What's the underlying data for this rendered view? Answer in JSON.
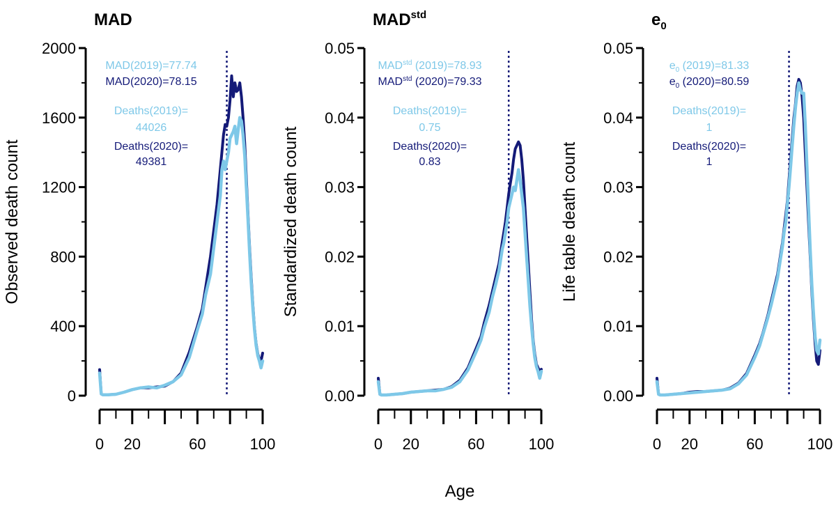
{
  "colors": {
    "light": "#7ec8e8",
    "dark": "#141a78",
    "axis": "#000000"
  },
  "xlabel": "Age",
  "chart_data": [
    {
      "type": "line",
      "title": "MAD",
      "title_sup": "",
      "title_sub": "",
      "ylabel": "Observed death count",
      "xlim": [
        0,
        100
      ],
      "ylim": [
        0,
        2000
      ],
      "yticks": [
        "0",
        "400",
        "800",
        "1200",
        "1600",
        "2000"
      ],
      "xticks": [
        "0",
        "20",
        "60",
        "100"
      ],
      "vline": 78,
      "annotations": [
        {
          "series": "2019",
          "base": "MAD",
          "sup": "",
          "sub": "",
          "rest": "(2019)=77.74"
        },
        {
          "series": "2020",
          "base": "MAD",
          "sup": "",
          "sub": "",
          "rest": "(2020)=78.15"
        },
        {
          "series": "2019",
          "base": "Deaths(2019)=",
          "sup": "",
          "sub": "",
          "rest": ""
        },
        {
          "series": "2019",
          "base": "44026",
          "sup": "",
          "sub": "",
          "rest": ""
        },
        {
          "series": "2020",
          "base": "Deaths(2020)=",
          "sup": "",
          "sub": "",
          "rest": ""
        },
        {
          "series": "2020",
          "base": "49381",
          "sup": "",
          "sub": "",
          "rest": ""
        }
      ],
      "series": [
        {
          "year": "2020",
          "x": [
            0,
            1,
            2,
            5,
            10,
            15,
            20,
            25,
            30,
            35,
            40,
            45,
            50,
            55,
            60,
            63,
            65,
            68,
            70,
            72,
            74,
            75,
            76,
            77,
            78,
            79,
            80,
            81,
            82,
            83,
            84,
            85,
            86,
            87,
            88,
            89,
            90,
            91,
            92,
            93,
            94,
            95,
            96,
            97,
            98,
            99,
            100
          ],
          "values": [
            150,
            10,
            5,
            5,
            8,
            20,
            35,
            45,
            45,
            50,
            55,
            80,
            130,
            250,
            400,
            500,
            620,
            800,
            950,
            1100,
            1300,
            1400,
            1500,
            1560,
            1550,
            1600,
            1700,
            1840,
            1720,
            1800,
            1750,
            1760,
            1800,
            1720,
            1600,
            1450,
            1250,
            1050,
            850,
            680,
            520,
            390,
            300,
            240,
            210,
            200,
            245
          ]
        },
        {
          "year": "2019",
          "x": [
            0,
            1,
            2,
            5,
            10,
            15,
            20,
            25,
            30,
            35,
            40,
            45,
            50,
            55,
            60,
            63,
            65,
            68,
            70,
            72,
            74,
            75,
            76,
            77,
            78,
            79,
            80,
            81,
            82,
            83,
            84,
            85,
            86,
            87,
            88,
            89,
            90,
            91,
            92,
            93,
            94,
            95,
            96,
            97,
            98,
            99,
            100
          ],
          "values": [
            130,
            10,
            5,
            5,
            8,
            20,
            35,
            45,
            50,
            45,
            60,
            80,
            120,
            220,
            380,
            470,
            580,
            700,
            850,
            1000,
            1150,
            1300,
            1350,
            1300,
            1350,
            1400,
            1480,
            1500,
            1520,
            1550,
            1450,
            1530,
            1600,
            1580,
            1500,
            1380,
            1200,
            1020,
            820,
            650,
            500,
            380,
            290,
            230,
            200,
            160,
            200
          ]
        }
      ]
    },
    {
      "type": "line",
      "title": "MAD",
      "title_sup": "std",
      "title_sub": "",
      "ylabel": "Standardized death count",
      "xlim": [
        0,
        100
      ],
      "ylim": [
        0,
        0.05
      ],
      "yticks": [
        "0.00",
        "0.01",
        "0.02",
        "0.03",
        "0.04",
        "0.05"
      ],
      "xticks": [
        "0",
        "20",
        "60",
        "100"
      ],
      "vline": 80,
      "annotations": [
        {
          "series": "2019",
          "base": "MAD",
          "sup": "std",
          "sub": "",
          "rest": " (2019)=78.93"
        },
        {
          "series": "2020",
          "base": "MAD",
          "sup": "std",
          "sub": "",
          "rest": " (2020)=79.33"
        },
        {
          "series": "2019",
          "base": "Deaths(2019)=",
          "sup": "",
          "sub": "",
          "rest": ""
        },
        {
          "series": "2019",
          "base": "0.75",
          "sup": "",
          "sub": "",
          "rest": ""
        },
        {
          "series": "2020",
          "base": "Deaths(2020)=",
          "sup": "",
          "sub": "",
          "rest": ""
        },
        {
          "series": "2020",
          "base": "0.83",
          "sup": "",
          "sub": "",
          "rest": ""
        }
      ],
      "series": [
        {
          "year": "2020",
          "x": [
            0,
            1,
            2,
            5,
            10,
            15,
            20,
            25,
            30,
            35,
            40,
            45,
            50,
            55,
            60,
            63,
            65,
            68,
            70,
            72,
            74,
            75,
            76,
            77,
            78,
            79,
            80,
            81,
            82,
            83,
            84,
            85,
            86,
            87,
            88,
            89,
            90,
            91,
            92,
            93,
            94,
            95,
            96,
            97,
            98,
            99,
            100
          ],
          "values": [
            0.0025,
            0.0002,
            0.0001,
            0.0001,
            0.0002,
            0.0003,
            0.0005,
            0.0006,
            0.0007,
            0.0008,
            0.0009,
            0.0013,
            0.0022,
            0.004,
            0.0068,
            0.0085,
            0.0105,
            0.013,
            0.015,
            0.017,
            0.019,
            0.0205,
            0.022,
            0.0235,
            0.025,
            0.027,
            0.029,
            0.0305,
            0.032,
            0.034,
            0.0355,
            0.036,
            0.0365,
            0.036,
            0.034,
            0.031,
            0.027,
            0.023,
            0.019,
            0.015,
            0.011,
            0.008,
            0.006,
            0.0045,
            0.004,
            0.0035,
            0.0038
          ]
        },
        {
          "year": "2019",
          "x": [
            0,
            1,
            2,
            5,
            10,
            15,
            20,
            25,
            30,
            35,
            40,
            45,
            50,
            55,
            60,
            63,
            65,
            68,
            70,
            72,
            74,
            75,
            76,
            77,
            78,
            79,
            80,
            81,
            82,
            83,
            84,
            85,
            86,
            87,
            88,
            89,
            90,
            91,
            92,
            93,
            94,
            95,
            96,
            97,
            98,
            99,
            100
          ],
          "values": [
            0.002,
            0.0002,
            0.0001,
            0.0001,
            0.0002,
            0.0003,
            0.0005,
            0.0006,
            0.0007,
            0.0007,
            0.0009,
            0.0012,
            0.002,
            0.0037,
            0.0063,
            0.008,
            0.0098,
            0.012,
            0.0142,
            0.016,
            0.018,
            0.0195,
            0.021,
            0.022,
            0.0235,
            0.025,
            0.027,
            0.028,
            0.029,
            0.03,
            0.0295,
            0.031,
            0.0325,
            0.031,
            0.029,
            0.027,
            0.0235,
            0.02,
            0.0165,
            0.013,
            0.01,
            0.0075,
            0.0055,
            0.0042,
            0.0035,
            0.0025,
            0.0035
          ]
        }
      ]
    },
    {
      "type": "line",
      "title": "e",
      "title_sup": "",
      "title_sub": "0",
      "ylabel": "Life table death count",
      "xlim": [
        0,
        100
      ],
      "ylim": [
        0,
        0.05
      ],
      "yticks": [
        "0.00",
        "0.01",
        "0.02",
        "0.03",
        "0.04",
        "0.05"
      ],
      "xticks": [
        "0",
        "20",
        "60",
        "100"
      ],
      "vline": 81,
      "annotations": [
        {
          "series": "2019",
          "base": "e",
          "sup": "",
          "sub": "0",
          "rest": " (2019)=81.33"
        },
        {
          "series": "2020",
          "base": "e",
          "sup": "",
          "sub": "0",
          "rest": " (2020)=80.59"
        },
        {
          "series": "2019",
          "base": "Deaths(2019)=",
          "sup": "",
          "sub": "",
          "rest": ""
        },
        {
          "series": "2019",
          "base": "1",
          "sup": "",
          "sub": "",
          "rest": ""
        },
        {
          "series": "2020",
          "base": "Deaths(2020)=",
          "sup": "",
          "sub": "",
          "rest": ""
        },
        {
          "series": "2020",
          "base": "1",
          "sup": "",
          "sub": "",
          "rest": ""
        }
      ],
      "series": [
        {
          "year": "2020",
          "x": [
            0,
            1,
            2,
            5,
            10,
            15,
            20,
            25,
            30,
            35,
            40,
            45,
            50,
            55,
            60,
            63,
            65,
            68,
            70,
            72,
            74,
            75,
            76,
            77,
            78,
            79,
            80,
            81,
            82,
            83,
            84,
            85,
            86,
            87,
            88,
            89,
            90,
            91,
            92,
            93,
            94,
            95,
            96,
            97,
            98,
            99,
            100
          ],
          "values": [
            0.0025,
            0.0002,
            0.0001,
            0.0001,
            0.0002,
            0.0003,
            0.0005,
            0.0006,
            0.0006,
            0.0007,
            0.0008,
            0.0011,
            0.0018,
            0.0032,
            0.0058,
            0.0075,
            0.009,
            0.0115,
            0.0135,
            0.0155,
            0.0175,
            0.019,
            0.0205,
            0.022,
            0.024,
            0.026,
            0.028,
            0.031,
            0.034,
            0.037,
            0.04,
            0.042,
            0.0445,
            0.0455,
            0.045,
            0.043,
            0.04,
            0.035,
            0.03,
            0.025,
            0.02,
            0.015,
            0.011,
            0.0075,
            0.005,
            0.0045,
            0.0065
          ]
        },
        {
          "year": "2019",
          "x": [
            0,
            1,
            2,
            5,
            10,
            15,
            20,
            25,
            30,
            35,
            40,
            45,
            50,
            55,
            60,
            63,
            65,
            68,
            70,
            72,
            74,
            75,
            76,
            77,
            78,
            79,
            80,
            81,
            82,
            83,
            84,
            85,
            86,
            87,
            88,
            89,
            90,
            91,
            92,
            93,
            94,
            95,
            96,
            97,
            98,
            99,
            100
          ],
          "values": [
            0.002,
            0.0002,
            0.0001,
            0.0001,
            0.0002,
            0.0003,
            0.0004,
            0.0005,
            0.0006,
            0.0007,
            0.0008,
            0.001,
            0.0017,
            0.003,
            0.0055,
            0.0072,
            0.0088,
            0.0112,
            0.013,
            0.015,
            0.017,
            0.0185,
            0.02,
            0.0215,
            0.0235,
            0.025,
            0.0275,
            0.03,
            0.033,
            0.036,
            0.039,
            0.0415,
            0.0435,
            0.045,
            0.044,
            0.0435,
            0.0435,
            0.039,
            0.033,
            0.027,
            0.021,
            0.016,
            0.012,
            0.0085,
            0.0065,
            0.006,
            0.008
          ]
        }
      ]
    }
  ]
}
